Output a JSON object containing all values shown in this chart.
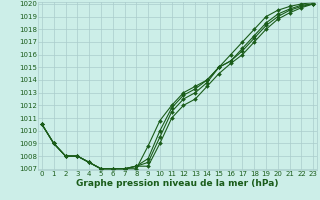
{
  "x": [
    0,
    1,
    2,
    3,
    4,
    5,
    6,
    7,
    8,
    9,
    10,
    11,
    12,
    13,
    14,
    15,
    16,
    17,
    18,
    19,
    20,
    21,
    22,
    23
  ],
  "line1": [
    1010.5,
    1009.0,
    1008.0,
    1008.0,
    1007.5,
    1007.0,
    1007.0,
    1007.0,
    1007.0,
    1008.8,
    1010.8,
    1012.0,
    1013.0,
    1013.5,
    1014.0,
    1015.0,
    1016.0,
    1017.0,
    1018.0,
    1019.0,
    1019.5,
    1019.8,
    1020.0,
    1020.1
  ],
  "line2": [
    1010.5,
    1009.0,
    1008.0,
    1008.0,
    1007.5,
    1007.0,
    1007.0,
    1007.0,
    1007.2,
    1007.8,
    1010.0,
    1011.8,
    1012.8,
    1013.3,
    1014.0,
    1015.0,
    1015.5,
    1016.5,
    1017.5,
    1018.5,
    1019.2,
    1019.6,
    1019.9,
    1020.0
  ],
  "line3": [
    1010.5,
    1009.0,
    1008.0,
    1008.0,
    1007.5,
    1007.0,
    1007.0,
    1007.0,
    1007.2,
    1007.5,
    1009.5,
    1011.5,
    1012.5,
    1013.0,
    1013.8,
    1015.0,
    1015.5,
    1016.3,
    1017.3,
    1018.3,
    1019.0,
    1019.5,
    1019.8,
    1020.0
  ],
  "line4": [
    1010.5,
    1009.0,
    1008.0,
    1008.0,
    1007.5,
    1007.0,
    1007.0,
    1007.0,
    1007.2,
    1007.2,
    1009.0,
    1011.0,
    1012.0,
    1012.5,
    1013.5,
    1014.5,
    1015.3,
    1016.0,
    1017.0,
    1018.0,
    1018.8,
    1019.3,
    1019.7,
    1020.0
  ],
  "bg_color": "#cceee8",
  "grid_color": "#aacccc",
  "line_color": "#1a5c1a",
  "marker": "D",
  "marker_size": 2.0,
  "ylim_min": 1007,
  "ylim_max": 1020,
  "xlim_min": 0,
  "xlim_max": 23,
  "yticks": [
    1007,
    1008,
    1009,
    1010,
    1011,
    1012,
    1013,
    1014,
    1015,
    1016,
    1017,
    1018,
    1019,
    1020
  ],
  "xticks": [
    0,
    1,
    2,
    3,
    4,
    5,
    6,
    7,
    8,
    9,
    10,
    11,
    12,
    13,
    14,
    15,
    16,
    17,
    18,
    19,
    20,
    21,
    22,
    23
  ],
  "xlabel": "Graphe pression niveau de la mer (hPa)",
  "xlabel_fontsize": 6.5,
  "tick_fontsize": 5.0,
  "line_width": 0.8
}
